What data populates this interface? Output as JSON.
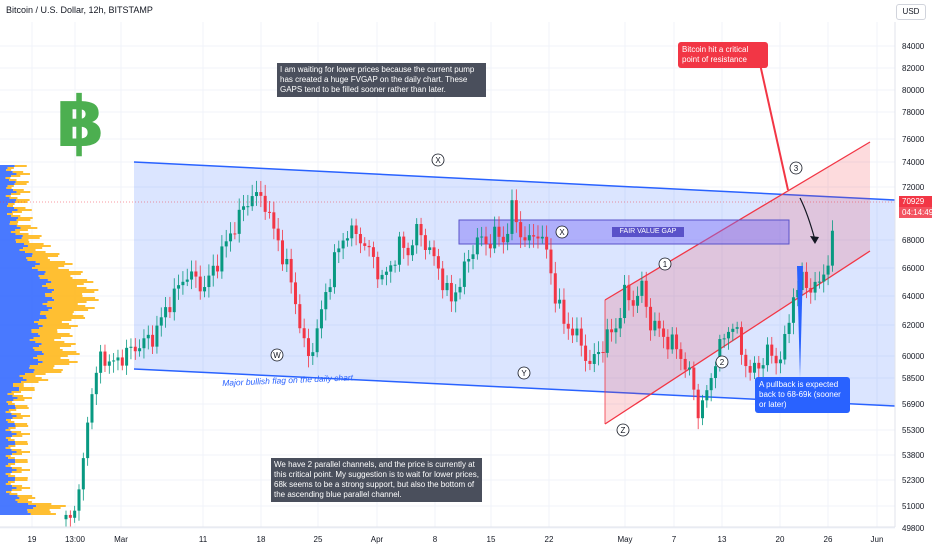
{
  "header": {
    "title": "Bitcoin / U.S. Dollar, 12h, BITSTAMP",
    "currency": "USD"
  },
  "price_tag": {
    "price": "70929",
    "countdown": "04:14:49",
    "color": "#f23645"
  },
  "logo": {
    "glyph": "฿",
    "icon": "bitcoin-logo-icon",
    "color": "#4caf50"
  },
  "annotations": {
    "top_note": "I am waiting for lower prices because the current pump has created a huge FVGAP on the daily chart. These GAPS tend to be filled sooner rather than later.",
    "bottom_note": "We have 2 parallel channels, and the price is currently at this critical point. My suggestion is to wait for lower prices, 68k seems to be a strong support, but also the bottom of the ascending blue parallel channel.",
    "resistance_note": "Bitcoin hit a critical point of resistance",
    "pullback_note": "A pullback is expected back to 68-69k (sooner or later)",
    "fvg_label": "FAIR VALUE GAP",
    "flag_label": "Major bullish flag on the daily chart",
    "wave_labels": [
      "W",
      "X",
      "Y",
      "Z",
      "X",
      "1",
      "2",
      "3"
    ]
  },
  "chart_data": {
    "type": "candlestick",
    "title": "Bitcoin / U.S. Dollar, 12h, BITSTAMP",
    "y_ticks": [
      "84000",
      "82000",
      "80000",
      "78000",
      "76000",
      "74000",
      "72000",
      "68000",
      "66000",
      "64000",
      "62000",
      "60000",
      "58500",
      "56900",
      "55300",
      "53800",
      "52300",
      "51000",
      "49800"
    ],
    "x_ticks": [
      "19",
      "13:00",
      "Mar",
      "11",
      "18",
      "25",
      "Apr",
      "8",
      "15",
      "22",
      "May",
      "7",
      "13",
      "20",
      "26",
      "Jun"
    ],
    "last_price": 70929,
    "close_path": [
      [
        0,
        61500
      ],
      [
        6,
        62800
      ],
      [
        10,
        63500
      ],
      [
        14,
        66000
      ],
      [
        18,
        68000
      ],
      [
        22,
        67000
      ],
      [
        26,
        69500
      ],
      [
        30,
        72000
      ],
      [
        33,
        73600
      ],
      [
        36,
        73000
      ],
      [
        38,
        71000
      ],
      [
        41,
        68500
      ],
      [
        43,
        66000
      ],
      [
        45,
        63000
      ],
      [
        46,
        62000
      ],
      [
        48,
        64000
      ],
      [
        50,
        66500
      ],
      [
        52,
        69000
      ],
      [
        55,
        71000
      ],
      [
        58,
        70500
      ],
      [
        61,
        69000
      ],
      [
        63,
        67500
      ],
      [
        65,
        68500
      ],
      [
        67,
        70000
      ],
      [
        69,
        69500
      ],
      [
        71,
        71000
      ],
      [
        73,
        70200
      ],
      [
        75,
        69000
      ],
      [
        77,
        67500
      ],
      [
        79,
        66000
      ],
      [
        81,
        67500
      ],
      [
        83,
        69000
      ],
      [
        85,
        70500
      ],
      [
        87,
        70000
      ],
      [
        89,
        70800
      ],
      [
        91,
        70200
      ],
      [
        93,
        72500
      ],
      [
        95,
        70800
      ],
      [
        97,
        70200
      ],
      [
        99,
        71000
      ],
      [
        101,
        69500
      ],
      [
        103,
        66500
      ],
      [
        105,
        64500
      ],
      [
        107,
        64000
      ],
      [
        109,
        63000
      ],
      [
        111,
        61500
      ],
      [
        113,
        62500
      ],
      [
        115,
        63500
      ],
      [
        117,
        64200
      ],
      [
        119,
        66500
      ],
      [
        121,
        66000
      ],
      [
        123,
        67000
      ],
      [
        125,
        64500
      ],
      [
        127,
        64000
      ],
      [
        129,
        63200
      ],
      [
        131,
        62800
      ],
      [
        133,
        61500
      ],
      [
        135,
        60000
      ],
      [
        136,
        58200
      ],
      [
        138,
        59500
      ],
      [
        140,
        62000
      ],
      [
        142,
        63500
      ],
      [
        144,
        64500
      ],
      [
        146,
        62500
      ],
      [
        148,
        61000
      ],
      [
        150,
        61500
      ],
      [
        152,
        62500
      ],
      [
        154,
        61800
      ],
      [
        156,
        63000
      ],
      [
        158,
        66500
      ],
      [
        160,
        67500
      ],
      [
        162,
        67000
      ],
      [
        164,
        67200
      ],
      [
        166,
        69000
      ],
      [
        167,
        71000
      ]
    ],
    "channels": [
      {
        "name": "Major bullish flag on the daily chart",
        "type": "descending",
        "color": "#2962ff"
      },
      {
        "name": "ascending red channel",
        "type": "ascending",
        "color": "#f23645"
      }
    ],
    "zones": [
      {
        "name": "FAIR VALUE GAP",
        "color": "#7b6cf6"
      }
    ]
  }
}
